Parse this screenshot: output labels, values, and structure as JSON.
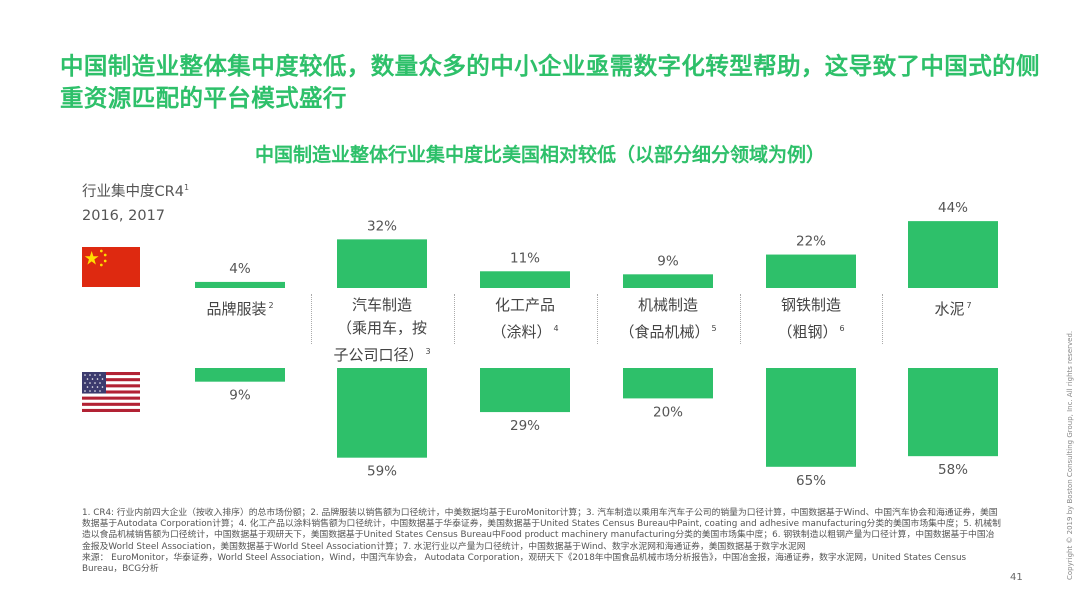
{
  "headline": "中国制造业整体集中度较低，数量众多的中小企业亟需数字化转型帮助，这导致了中国式的侧重资源匹配的平台模式盛行",
  "chart_title": "中国制造业整体行业集中度比美国相对较低（以部分细分领域为例）",
  "metric": {
    "label": "行业集中度CR4",
    "note_mark": "1",
    "years": "2016, 2017"
  },
  "countries": {
    "top": "China",
    "bottom": "United States"
  },
  "colors": {
    "bar": "#2ec06a",
    "title": "#2ec06a"
  },
  "chart_data": {
    "type": "bar",
    "title": "中国制造业整体行业集中度比美国相对较低（以部分细分领域为例）",
    "ylabel": "行业集中度CR4",
    "unit": "%",
    "categories": [
      "品牌服装",
      "汽车制造（乘用车，按子公司口径）",
      "化工产品（涂料）",
      "机械制造（食品机械）",
      "钢铁制造（粗钢）",
      "水泥"
    ],
    "category_lines": [
      [
        "品牌服装"
      ],
      [
        "汽车制造",
        "（乘用车，按",
        "子公司口径）"
      ],
      [
        "化工产品",
        "（涂料）"
      ],
      [
        "机械制造",
        "（食品机械）"
      ],
      [
        "钢铁制造",
        "（粗钢）"
      ],
      [
        "水泥"
      ]
    ],
    "category_notes": [
      "2",
      "3",
      "4",
      "5",
      "6",
      "7"
    ],
    "series": [
      {
        "name": "China (2016/2017)",
        "values": [
          4,
          32,
          11,
          9,
          22,
          44
        ],
        "labels": [
          "4%",
          "32%",
          "11%",
          "9%",
          "22%",
          "44%"
        ]
      },
      {
        "name": "United States (2016/2017)",
        "values": [
          9,
          59,
          29,
          20,
          65,
          58
        ],
        "labels": [
          "9%",
          "59%",
          "29%",
          "20%",
          "65%",
          "58%"
        ]
      }
    ],
    "ylim": [
      0,
      70
    ]
  },
  "footnotes": "1. CR4: 行业内前四大企业（按收入排序）的总市场份额；2. 品牌服装以销售额为口径统计，中美数据均基于EuroMonitor计算；3. 汽车制造以乘用车汽车子公司的销量为口径计算，中国数据基于Wind、中国汽车协会和海通证券，美国数据基于Autodata Corporation计算；4. 化工产品以涂料销售额为口径统计，中国数据基于华泰证券，美国数据基于United States Census Bureau中Paint, coating and adhesive manufacturing分类的美国市场集中度；5. 机械制造以食品机械销售额为口径统计，中国数据基于观研天下，美国数据基于United States Census Bureau中Food product machinery manufacturing分类的美国市场集中度；6. 钢铁制造以粗钢产量为口径计算，中国数据基于中国冶金报及World Steel Association，美国数据基于World Steel Association计算；7. 水泥行业以产量为口径统计，中国数据基于Wind、数字水泥网和海通证券，美国数据基于数字水泥网",
  "sources": "来源： EuroMonitor，华泰证券，World Steel Association，Wind，中国汽车协会， Autodata Corporation，观研天下《2018年中国食品机械市场分析报告》，中国冶金报，海通证券，数字水泥网，United States Census Bureau，BCG分析",
  "page_number": "41",
  "copyright": "Copyright © 2019 by Boston Consulting Group, Inc. All rights reserved."
}
